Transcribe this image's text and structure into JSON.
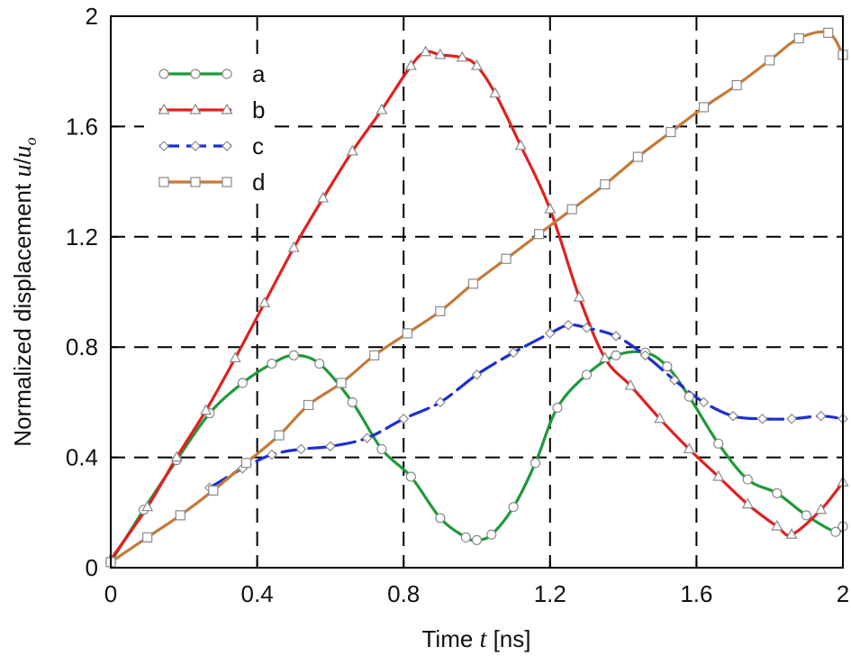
{
  "chart_data": {
    "type": "line",
    "xlabel_prefix": "Time ",
    "xlabel_var": "t",
    "xlabel_suffix": " [ns]",
    "ylabel_prefix": "Normalized displacement ",
    "ylabel_var": "u",
    "ylabel_sep": "/",
    "ylabel_var2": "u",
    "ylabel_sub": "o",
    "xlim": [
      0,
      2
    ],
    "ylim": [
      0,
      2
    ],
    "xticks": [
      0,
      0.4,
      0.8,
      1.2,
      1.6,
      2
    ],
    "xtick_labels": [
      "0",
      "0.4",
      "0.8",
      "1.2",
      "1.6",
      "2"
    ],
    "yticks": [
      0,
      0.4,
      0.8,
      1.2,
      1.6,
      2
    ],
    "ytick_labels": [
      "0",
      "0.4",
      "0.8",
      "1.2",
      "1.6",
      "2"
    ],
    "grid": "dashed",
    "legend_position": "top-left",
    "series": [
      {
        "name": "a",
        "color": "#1e9a3a",
        "marker": "circle",
        "dashed": false,
        "x": [
          0,
          0.09,
          0.18,
          0.27,
          0.36,
          0.44,
          0.5,
          0.57,
          0.66,
          0.74,
          0.82,
          0.9,
          0.97,
          1.0,
          1.04,
          1.1,
          1.16,
          1.22,
          1.3,
          1.38,
          1.46,
          1.52,
          1.58,
          1.66,
          1.74,
          1.82,
          1.9,
          1.98,
          2.0
        ],
        "y": [
          0.02,
          0.21,
          0.39,
          0.56,
          0.67,
          0.74,
          0.77,
          0.74,
          0.6,
          0.43,
          0.33,
          0.18,
          0.11,
          0.1,
          0.12,
          0.22,
          0.38,
          0.58,
          0.7,
          0.77,
          0.78,
          0.73,
          0.62,
          0.45,
          0.32,
          0.27,
          0.19,
          0.13,
          0.15
        ]
      },
      {
        "name": "b",
        "color": "#e02020",
        "marker": "triangle",
        "dashed": false,
        "x": [
          0,
          0.1,
          0.18,
          0.26,
          0.34,
          0.42,
          0.5,
          0.58,
          0.66,
          0.74,
          0.82,
          0.86,
          0.9,
          0.96,
          1.0,
          1.05,
          1.12,
          1.2,
          1.28,
          1.35,
          1.42,
          1.5,
          1.58,
          1.66,
          1.74,
          1.82,
          1.86,
          1.94,
          2.0
        ],
        "y": [
          0.03,
          0.22,
          0.4,
          0.57,
          0.76,
          0.96,
          1.16,
          1.34,
          1.51,
          1.66,
          1.82,
          1.87,
          1.86,
          1.85,
          1.82,
          1.72,
          1.53,
          1.3,
          0.98,
          0.76,
          0.66,
          0.54,
          0.43,
          0.33,
          0.23,
          0.15,
          0.12,
          0.21,
          0.31
        ]
      },
      {
        "name": "c",
        "color": "#1c2fd1",
        "marker": "diamond",
        "dashed": true,
        "x": [
          0.27,
          0.36,
          0.44,
          0.52,
          0.6,
          0.7,
          0.8,
          0.9,
          1.0,
          1.1,
          1.2,
          1.25,
          1.3,
          1.38,
          1.46,
          1.54,
          1.62,
          1.7,
          1.78,
          1.86,
          1.94,
          2.0
        ],
        "y": [
          0.29,
          0.36,
          0.41,
          0.43,
          0.44,
          0.47,
          0.54,
          0.6,
          0.7,
          0.78,
          0.85,
          0.88,
          0.87,
          0.84,
          0.77,
          0.68,
          0.6,
          0.55,
          0.54,
          0.54,
          0.55,
          0.54
        ]
      },
      {
        "name": "d",
        "color": "#c47a38",
        "marker": "square",
        "dashed": false,
        "x": [
          0,
          0.1,
          0.19,
          0.28,
          0.37,
          0.46,
          0.54,
          0.63,
          0.72,
          0.81,
          0.9,
          0.99,
          1.08,
          1.17,
          1.26,
          1.35,
          1.44,
          1.53,
          1.62,
          1.71,
          1.8,
          1.88,
          1.96,
          2.0
        ],
        "y": [
          0.02,
          0.11,
          0.19,
          0.28,
          0.38,
          0.48,
          0.59,
          0.67,
          0.77,
          0.85,
          0.93,
          1.03,
          1.12,
          1.21,
          1.3,
          1.39,
          1.49,
          1.58,
          1.67,
          1.75,
          1.84,
          1.92,
          1.94,
          1.86
        ]
      }
    ]
  }
}
